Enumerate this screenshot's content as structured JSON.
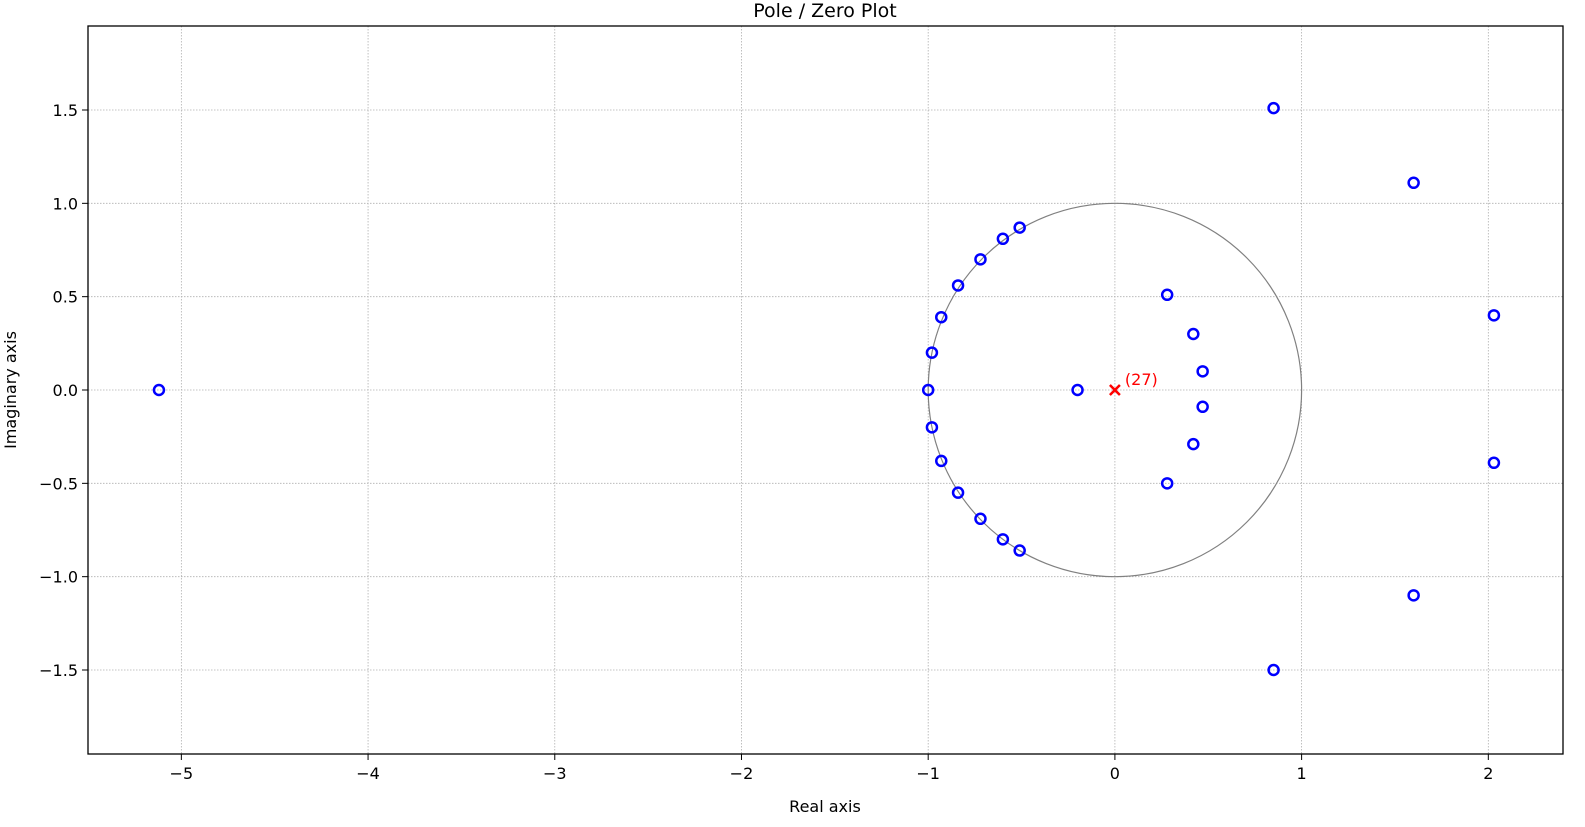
{
  "chart_data": {
    "type": "scatter",
    "title": "Pole / Zero Plot",
    "xlabel": "Real axis",
    "ylabel": "Imaginary axis",
    "xlim": [
      -5.5,
      2.4
    ],
    "ylim": [
      -1.95,
      1.95
    ],
    "grid": true,
    "xticks": [
      -5,
      -4,
      -3,
      -2,
      -1,
      0,
      1,
      2
    ],
    "xtick_labels": [
      "−5",
      "−4",
      "−3",
      "−2",
      "−1",
      "0",
      "1",
      "2"
    ],
    "yticks": [
      1.5,
      1.0,
      0.5,
      0.0,
      -0.5,
      -1.0,
      -1.5
    ],
    "ytick_labels": [
      "1.5",
      "1.0",
      "0.5",
      "0.0",
      "−0.5",
      "−1.0",
      "−1.5"
    ],
    "unit_circle": {
      "center": [
        0,
        0
      ],
      "radius": 1,
      "color": "#808080"
    },
    "colors": {
      "zeros": "#0000ff",
      "poles": "#ff0000",
      "grid": "#b0b0b0"
    },
    "series": [
      {
        "marker": "circle",
        "color": "#0000ff",
        "points": [
          [
            -5.12,
            0.0
          ],
          [
            -1.0,
            0.0
          ],
          [
            -0.98,
            0.2
          ],
          [
            -0.98,
            -0.2
          ],
          [
            -0.93,
            0.39
          ],
          [
            -0.93,
            -0.38
          ],
          [
            -0.84,
            0.56
          ],
          [
            -0.84,
            -0.55
          ],
          [
            -0.72,
            0.7
          ],
          [
            -0.72,
            -0.69
          ],
          [
            -0.6,
            0.81
          ],
          [
            -0.6,
            -0.8
          ],
          [
            -0.51,
            0.87
          ],
          [
            -0.51,
            -0.86
          ],
          [
            -0.2,
            0.0
          ],
          [
            0.28,
            0.51
          ],
          [
            0.28,
            -0.5
          ],
          [
            0.42,
            0.3
          ],
          [
            0.42,
            -0.29
          ],
          [
            0.47,
            0.1
          ],
          [
            0.47,
            -0.09
          ],
          [
            0.85,
            1.51
          ],
          [
            0.85,
            -1.5
          ],
          [
            1.6,
            1.11
          ],
          [
            1.6,
            -1.1
          ],
          [
            2.03,
            0.4
          ],
          [
            2.03,
            -0.39
          ]
        ]
      },
      {
        "marker": "x",
        "color": "#ff0000",
        "points": [
          [
            0.0,
            0.0
          ]
        ]
      }
    ],
    "annotations": [
      {
        "text": "(27)",
        "x": 0.0,
        "y": 0.0,
        "color": "#ff0000"
      }
    ]
  }
}
